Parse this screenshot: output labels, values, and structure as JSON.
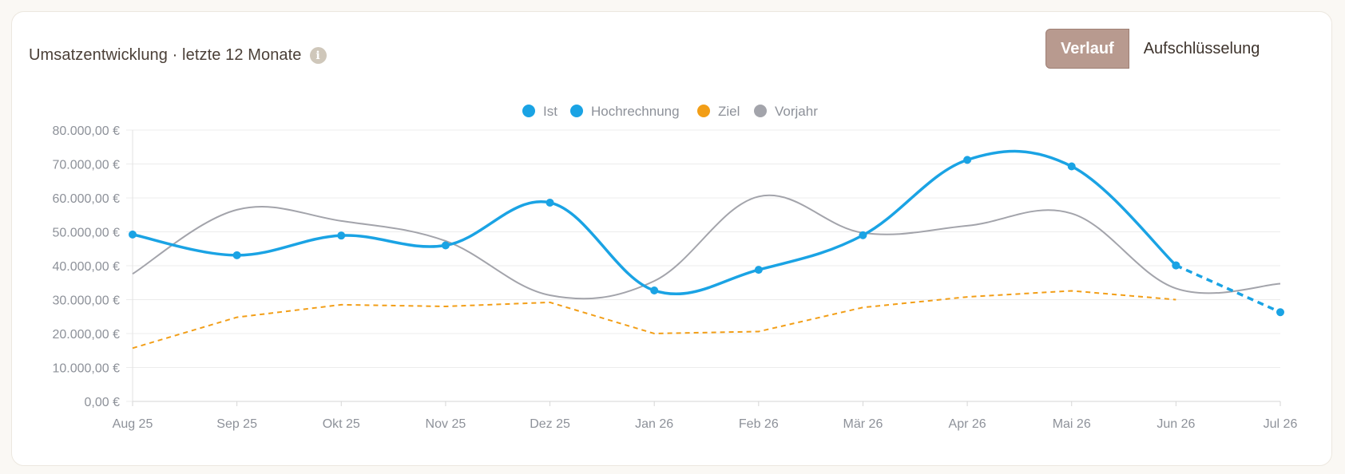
{
  "header": {
    "title": "Umsatzentwicklung · letzte 12 Monate",
    "info_icon": "info-icon"
  },
  "toggle": {
    "active_label": "Verlauf",
    "inactive_label": "Aufschlüsselung"
  },
  "colors": {
    "ist": "#1aa3e4",
    "hochrechnung": "#1aa3e4",
    "ziel": "#f29e17",
    "vorjahr": "#a3a4ab",
    "grid": "#ececec",
    "axis_text": "#8d9199",
    "toggle_active": "#b89a8f"
  },
  "chart_data": {
    "type": "line",
    "categories": [
      "Aug 25",
      "Sep 25",
      "Okt 25",
      "Nov 25",
      "Dez 25",
      "Jan 26",
      "Feb 26",
      "Mär 26",
      "Apr 26",
      "Mai 26",
      "Jun 26",
      "Jul 26"
    ],
    "y_ticks": [
      "0,00 €",
      "10.000,00 €",
      "20.000,00 €",
      "30.000,00 €",
      "40.000,00 €",
      "50.000,00 €",
      "60.000,00 €",
      "70.000,00 €",
      "80.000,00 €"
    ],
    "ylim": [
      0,
      80000
    ],
    "legend_position": "top-center",
    "grid": true,
    "series": [
      {
        "key": "ist",
        "name": "Ist",
        "style": "solid",
        "values": [
          49200,
          43100,
          48900,
          46000,
          58600,
          32700,
          38800,
          49000,
          71200,
          69300,
          40100,
          null
        ]
      },
      {
        "key": "hochrechnung",
        "name": "Hochrechnung",
        "style": "dashed",
        "values": [
          null,
          null,
          null,
          null,
          null,
          null,
          null,
          null,
          null,
          null,
          40100,
          26300
        ]
      },
      {
        "key": "ziel",
        "name": "Ziel",
        "style": "dashed",
        "values": [
          15700,
          24800,
          28500,
          28000,
          29200,
          20000,
          20600,
          27700,
          30800,
          32600,
          30000,
          null
        ]
      },
      {
        "key": "vorjahr",
        "name": "Vorjahr",
        "style": "solid",
        "values": [
          37600,
          56500,
          53200,
          47300,
          31300,
          35500,
          60400,
          49700,
          51800,
          55400,
          33300,
          34700
        ]
      }
    ]
  }
}
